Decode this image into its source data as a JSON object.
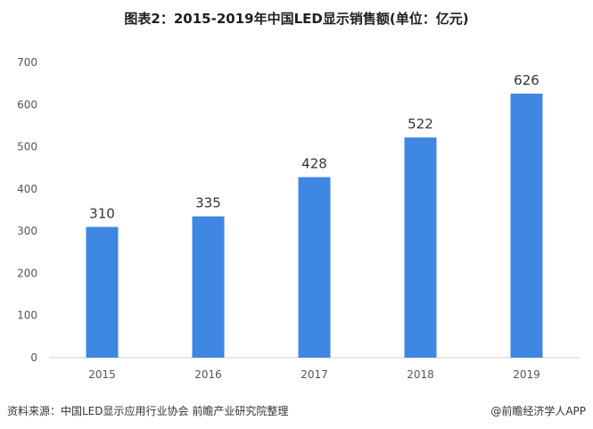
{
  "chart_data": {
    "type": "bar",
    "title": "图表2：2015-2019年中国LED显示销售额(单位：亿元)",
    "categories": [
      "2015",
      "2016",
      "2017",
      "2018",
      "2019"
    ],
    "values": [
      310,
      335,
      428,
      522,
      626
    ],
    "ylim": [
      0,
      700
    ],
    "yticks": [
      0,
      100,
      200,
      300,
      400,
      500,
      600,
      700
    ],
    "bar_color": "#3e87e2",
    "grid": false,
    "legend": "none"
  },
  "footer": {
    "source": "资料来源：中国LED显示应用行业协会 前瞻产业研究院整理",
    "brand": "@前瞻经济学人APP"
  }
}
